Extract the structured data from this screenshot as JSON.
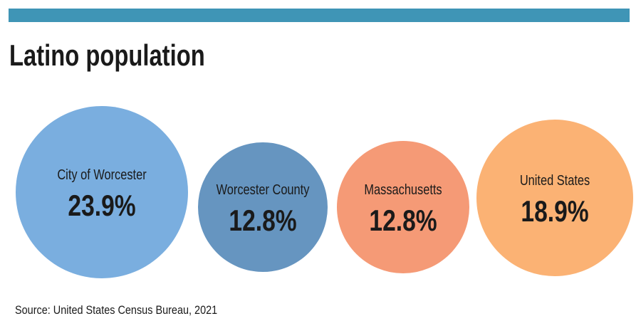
{
  "colors": {
    "top_bar": "#3f95b6",
    "text": "#1a1a1a"
  },
  "chart_data": {
    "type": "bubble",
    "title": "Latino population",
    "source": "Source: United States Census Bureau, 2021",
    "categories": [
      "City of Worcester",
      "Worcester County",
      "Massachusetts",
      "United States"
    ],
    "values": [
      23.9,
      12.8,
      12.8,
      18.9
    ],
    "value_labels": [
      "23.9%",
      "12.8%",
      "12.8%",
      "18.9%"
    ],
    "unit": "%",
    "colors": [
      "#7aaedf",
      "#6695c0",
      "#f59a76",
      "#fbb274"
    ]
  }
}
